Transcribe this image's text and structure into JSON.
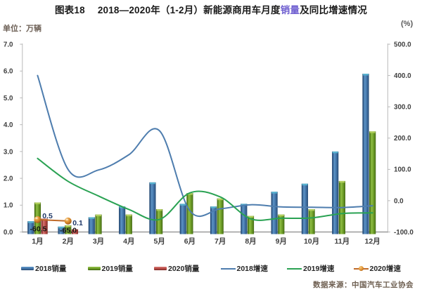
{
  "title": {
    "prefix": "图表18",
    "part1": "2018—2020年（1-2月）新能源商用车月度",
    "highlight": "销量",
    "part2": "及同比增速情况",
    "highlight_color": "#6f5fd0"
  },
  "unit_label": "单位：万辆",
  "percent_label": "(%)",
  "source": "数据来源：中国汽车工业协会",
  "legend": {
    "items": [
      {
        "label": "2018销量",
        "type": "bar",
        "series": "sales2018"
      },
      {
        "label": "2019销量",
        "type": "bar",
        "series": "sales2019"
      },
      {
        "label": "2020销量",
        "type": "bar",
        "series": "sales2020"
      },
      {
        "label": "2018增速",
        "type": "line",
        "series": "growth2018"
      },
      {
        "label": "2019增速",
        "type": "line",
        "series": "growth2019"
      },
      {
        "label": "2020增速",
        "type": "line-marker",
        "series": "growth2020"
      }
    ]
  },
  "colors": {
    "sales2018": {
      "edge": "#264a72",
      "dark": "#315a88",
      "light": "#5d94c6",
      "mid": "#4679ad",
      "cap": "#58b5d1"
    },
    "sales2019": {
      "edge": "#3f6410",
      "dark": "#55801b",
      "light": "#90bf45",
      "mid": "#73a22b",
      "cap": "#b3d05f"
    },
    "sales2020": {
      "edge": "#7c2b28",
      "dark": "#933632",
      "light": "#d37672",
      "mid": "#bf504a",
      "cap": "#de928d"
    },
    "growth2018": "#4e7dae",
    "growth2019": "#2aa253",
    "growth2020": "#bf6a28",
    "ball_hi": "#f8cd7f",
    "ball_mid": "#dd8c2e",
    "ball_lo": "#8a4a10",
    "axis_side": "#b9b9b9",
    "axis_bottom": "#9b9b9b",
    "tick_text": "#3f3f3f",
    "anno_navy": "#1f3767",
    "anno_black": "#141414"
  },
  "chart_data": {
    "type": "combo-bar-line",
    "categories": [
      "1月",
      "2月",
      "3月",
      "4月",
      "5月",
      "6月",
      "7月",
      "8月",
      "9月",
      "10月",
      "11月",
      "12月"
    ],
    "left_axis": {
      "title": "单位：万辆",
      "min": 0,
      "max": 7,
      "step": 1,
      "format": "0.0"
    },
    "right_axis": {
      "title": "(%)",
      "min": -100,
      "max": 500,
      "step": 100,
      "format": "0.0"
    },
    "grid": false,
    "legend_position": "bottom",
    "series": [
      {
        "name": "2018销量",
        "key": "sales2018",
        "type": "bar",
        "axis": "left",
        "values": [
          0.4,
          0.2,
          0.55,
          0.95,
          1.85,
          1.05,
          0.95,
          1.05,
          1.5,
          1.8,
          3.0,
          5.9
        ]
      },
      {
        "name": "2019销量",
        "key": "sales2019",
        "type": "bar",
        "axis": "left",
        "values": [
          1.1,
          0.25,
          0.65,
          0.65,
          0.85,
          1.45,
          1.25,
          0.6,
          0.65,
          0.85,
          1.9,
          3.75
        ]
      },
      {
        "name": "2020销量",
        "key": "sales2020",
        "type": "bar",
        "axis": "left",
        "values": [
          0.5,
          0.1,
          null,
          null,
          null,
          null,
          null,
          null,
          null,
          null,
          null,
          null
        ]
      },
      {
        "name": "2018增速",
        "key": "growth2018",
        "type": "line",
        "axis": "right",
        "values": [
          400,
          100,
          98,
          147,
          224,
          -32,
          -26,
          -13,
          -20,
          -21,
          -22,
          -16
        ]
      },
      {
        "name": "2019增速",
        "key": "growth2019",
        "type": "line",
        "axis": "right",
        "values": [
          135,
          62,
          15,
          -28,
          -60,
          25,
          12,
          -58,
          -56,
          -55,
          -41,
          -39
        ]
      },
      {
        "name": "2020增速",
        "key": "growth2020",
        "type": "line-marker",
        "axis": "right",
        "values": [
          -60.5,
          -65.0,
          null,
          null,
          null,
          null,
          null,
          null,
          null,
          null,
          null,
          null
        ]
      }
    ],
    "annotations": [
      {
        "text": "0.5",
        "x": 67.5,
        "y": 311,
        "style": "navy"
      },
      {
        "text": "0.1",
        "x": 110.5,
        "y": 321,
        "style": "navy"
      },
      {
        "text": "-60.5",
        "x": 54.5,
        "y": 329.5,
        "style": "black"
      },
      {
        "text": "-65.0",
        "x": 97,
        "y": 331.5,
        "style": "black"
      }
    ]
  }
}
